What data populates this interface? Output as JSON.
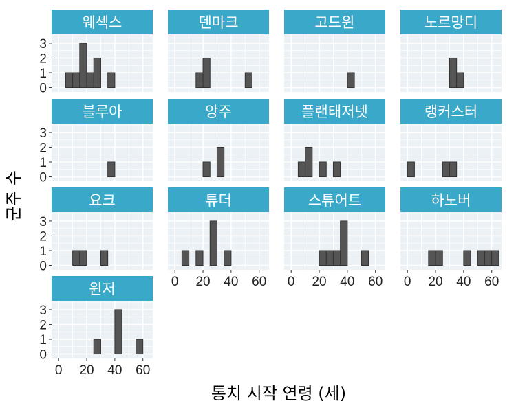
{
  "chart_data": {
    "type": "bar",
    "xlabel": "통치 시작 연령 (세)",
    "ylabel": "군주 수",
    "xlim": [
      -5,
      67
    ],
    "ylim": [
      -0.3,
      3.6
    ],
    "x_ticks": [
      0,
      20,
      40,
      60
    ],
    "y_ticks": [
      0,
      1,
      2,
      3
    ],
    "bin_width": 5,
    "grid": true,
    "strip_color": "#3aa8c9",
    "panel_background": "#ebf1f5",
    "bar_fill": "#555555",
    "panels": [
      {
        "name": "웨섹스",
        "bins": [
          {
            "x0": 5,
            "count": 1
          },
          {
            "x0": 10,
            "count": 1
          },
          {
            "x0": 15,
            "count": 3
          },
          {
            "x0": 20,
            "count": 1
          },
          {
            "x0": 25,
            "count": 2
          },
          {
            "x0": 35,
            "count": 1
          }
        ]
      },
      {
        "name": "덴마크",
        "bins": [
          {
            "x0": 15,
            "count": 1
          },
          {
            "x0": 20,
            "count": 2
          },
          {
            "x0": 50,
            "count": 1
          }
        ]
      },
      {
        "name": "고드윈",
        "bins": [
          {
            "x0": 40,
            "count": 1
          }
        ]
      },
      {
        "name": "노르망디",
        "bins": [
          {
            "x0": 30,
            "count": 2
          },
          {
            "x0": 35,
            "count": 1
          }
        ]
      },
      {
        "name": "블루아",
        "bins": [
          {
            "x0": 35,
            "count": 1
          }
        ]
      },
      {
        "name": "앙주",
        "bins": [
          {
            "x0": 20,
            "count": 1
          },
          {
            "x0": 30,
            "count": 2
          }
        ]
      },
      {
        "name": "플랜태저넷",
        "bins": [
          {
            "x0": 5,
            "count": 1
          },
          {
            "x0": 10,
            "count": 2
          },
          {
            "x0": 20,
            "count": 1
          },
          {
            "x0": 30,
            "count": 1
          }
        ]
      },
      {
        "name": "랭커스터",
        "bins": [
          {
            "x0": 0,
            "count": 1
          },
          {
            "x0": 25,
            "count": 1
          },
          {
            "x0": 30,
            "count": 1
          }
        ]
      },
      {
        "name": "요크",
        "bins": [
          {
            "x0": 10,
            "count": 1
          },
          {
            "x0": 15,
            "count": 1
          },
          {
            "x0": 30,
            "count": 1
          }
        ]
      },
      {
        "name": "튜더",
        "bins": [
          {
            "x0": 5,
            "count": 1
          },
          {
            "x0": 15,
            "count": 1
          },
          {
            "x0": 25,
            "count": 3
          },
          {
            "x0": 35,
            "count": 1
          }
        ]
      },
      {
        "name": "스튜어트",
        "bins": [
          {
            "x0": 20,
            "count": 1
          },
          {
            "x0": 25,
            "count": 1
          },
          {
            "x0": 30,
            "count": 1
          },
          {
            "x0": 35,
            "count": 3
          },
          {
            "x0": 50,
            "count": 1
          }
        ]
      },
      {
        "name": "하노버",
        "bins": [
          {
            "x0": 15,
            "count": 1
          },
          {
            "x0": 20,
            "count": 1
          },
          {
            "x0": 40,
            "count": 1
          },
          {
            "x0": 50,
            "count": 1
          },
          {
            "x0": 55,
            "count": 1
          },
          {
            "x0": 60,
            "count": 1
          }
        ]
      },
      {
        "name": "윈저",
        "bins": [
          {
            "x0": 25,
            "count": 1
          },
          {
            "x0": 40,
            "count": 3
          },
          {
            "x0": 55,
            "count": 1
          }
        ]
      }
    ]
  }
}
